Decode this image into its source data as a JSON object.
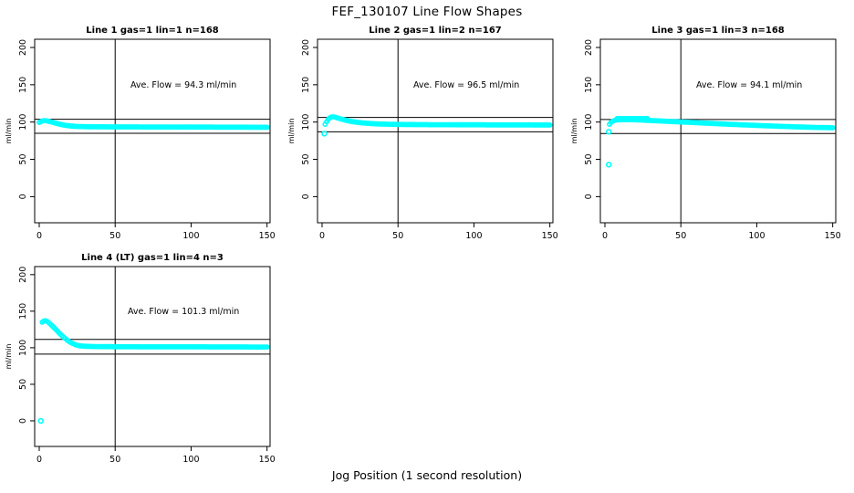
{
  "title": "FEF_130107  Line Flow Shapes",
  "xlabel": "Jog Position (1 second resolution)",
  "colors": {
    "points": "#00FFFF",
    "lines": "#000000",
    "background": "#FFFFFF"
  },
  "chart_data": [
    {
      "type": "scatter",
      "title": "Line 1 gas=1 lin=1 n=168",
      "n": 168,
      "avg_flow_ml_min": 94.3,
      "annotation": "Ave. Flow =  94.3  ml/min",
      "annotation_pos": [
        95,
        150
      ],
      "ylabel": "ml/min",
      "x_ticks": [
        0,
        50,
        100,
        150
      ],
      "y_ticks": [
        0,
        50,
        100,
        150,
        200
      ],
      "xlim": [
        -3,
        152
      ],
      "ylim": [
        -35,
        211
      ],
      "vline_x": 50,
      "ref_lines": [
        103.7,
        84.9
      ],
      "band_keypoints": [
        [
          0,
          99.5
        ],
        [
          1,
          100.5
        ],
        [
          2,
          101.5
        ],
        [
          3,
          102
        ],
        [
          4,
          102
        ],
        [
          5,
          101.6
        ],
        [
          6,
          101.1
        ],
        [
          7,
          100.6
        ],
        [
          8,
          100.1
        ],
        [
          9,
          99.5
        ],
        [
          10,
          99
        ],
        [
          12,
          97.9
        ],
        [
          14,
          96.9
        ],
        [
          16,
          96.1
        ],
        [
          18,
          95.4
        ],
        [
          20,
          94.9
        ],
        [
          22,
          94.5
        ],
        [
          25,
          94.1
        ],
        [
          28,
          93.9
        ],
        [
          32,
          93.7
        ],
        [
          40,
          93.6
        ],
        [
          55,
          93.5
        ],
        [
          75,
          93.4
        ],
        [
          95,
          93.3
        ],
        [
          115,
          93.2
        ],
        [
          135,
          93.1
        ],
        [
          150,
          93
        ]
      ],
      "upper_band_keypoints": [],
      "outlier_points": []
    },
    {
      "type": "scatter",
      "title": "Line 2 gas=1 lin=2 n=167",
      "n": 167,
      "avg_flow_ml_min": 96.5,
      "annotation": "Ave. Flow =  96.5  ml/min",
      "annotation_pos": [
        95,
        150
      ],
      "ylabel": "ml/min",
      "x_ticks": [
        0,
        50,
        100,
        150
      ],
      "y_ticks": [
        0,
        50,
        100,
        150,
        200
      ],
      "xlim": [
        -3,
        152
      ],
      "ylim": [
        -35,
        211
      ],
      "vline_x": 50,
      "ref_lines": [
        106.2,
        86.9
      ],
      "band_keypoints": [
        [
          2,
          97
        ],
        [
          3,
          100.5
        ],
        [
          4,
          103.5
        ],
        [
          5,
          105.5
        ],
        [
          6,
          106.6
        ],
        [
          7,
          107
        ],
        [
          8,
          106.8
        ],
        [
          9,
          106.3
        ],
        [
          10,
          105.6
        ],
        [
          11,
          105
        ],
        [
          12,
          104.4
        ],
        [
          14,
          103.3
        ],
        [
          16,
          102.3
        ],
        [
          18,
          101.4
        ],
        [
          20,
          100.6
        ],
        [
          22,
          100
        ],
        [
          25,
          99.2
        ],
        [
          28,
          98.6
        ],
        [
          32,
          98
        ],
        [
          36,
          97.6
        ],
        [
          40,
          97.3
        ],
        [
          48,
          96.9
        ],
        [
          56,
          96.7
        ],
        [
          70,
          96.5
        ],
        [
          85,
          96.4
        ],
        [
          100,
          96.3
        ],
        [
          120,
          96.2
        ],
        [
          150,
          96.1
        ]
      ],
      "upper_band_keypoints": [],
      "outlier_points": [
        [
          1.5,
          84.5
        ]
      ]
    },
    {
      "type": "scatter",
      "title": "Line 3 gas=1 lin=3 n=168",
      "n": 168,
      "avg_flow_ml_min": 94.1,
      "annotation": "Ave. Flow =  94.1  ml/min",
      "annotation_pos": [
        95,
        150
      ],
      "ylabel": "ml/min",
      "x_ticks": [
        0,
        50,
        100,
        150
      ],
      "y_ticks": [
        0,
        50,
        100,
        150,
        200
      ],
      "xlim": [
        -3,
        152
      ],
      "ylim": [
        -35,
        211
      ],
      "vline_x": 50,
      "ref_lines": [
        103.5,
        84.7
      ],
      "band_keypoints": [
        [
          3,
          97
        ],
        [
          4,
          99.5
        ],
        [
          5,
          101
        ],
        [
          6,
          102
        ],
        [
          7,
          102.6
        ],
        [
          8,
          102.9
        ],
        [
          10,
          103.1
        ],
        [
          13,
          103.2
        ],
        [
          16,
          103.2
        ],
        [
          19,
          103.1
        ],
        [
          22,
          102.9
        ],
        [
          25,
          102.6
        ],
        [
          28,
          102.3
        ],
        [
          32,
          101.9
        ],
        [
          36,
          101.5
        ],
        [
          40,
          101.1
        ],
        [
          45,
          100.6
        ],
        [
          50,
          100.1
        ],
        [
          55,
          99.7
        ],
        [
          60,
          99.2
        ],
        [
          65,
          98.7
        ],
        [
          70,
          98.2
        ],
        [
          75,
          97.7
        ],
        [
          80,
          97.2
        ],
        [
          85,
          96.8
        ],
        [
          90,
          96.3
        ],
        [
          95,
          95.9
        ],
        [
          100,
          95.5
        ],
        [
          105,
          95.1
        ],
        [
          110,
          94.7
        ],
        [
          115,
          94.3
        ],
        [
          120,
          94
        ],
        [
          125,
          93.6
        ],
        [
          130,
          93.3
        ],
        [
          135,
          93
        ],
        [
          140,
          92.8
        ],
        [
          145,
          92.6
        ],
        [
          150,
          92.4
        ]
      ],
      "upper_band_keypoints": [
        [
          8,
          104.6
        ],
        [
          28,
          104.6
        ]
      ],
      "outlier_points": [
        [
          2.5,
          43
        ],
        [
          2.5,
          87
        ]
      ]
    },
    {
      "type": "scatter",
      "title": "Line 4 (LT) gas=1 lin=4 n=3",
      "n": 3,
      "avg_flow_ml_min": 101.3,
      "annotation": "Ave. Flow =  101.3  ml/min",
      "annotation_pos": [
        95,
        150
      ],
      "ylabel": "ml/min",
      "x_ticks": [
        0,
        50,
        100,
        150
      ],
      "y_ticks": [
        0,
        50,
        100,
        150,
        200
      ],
      "xlim": [
        -3,
        152
      ],
      "ylim": [
        -35,
        211
      ],
      "vline_x": 50,
      "ref_lines": [
        111.4,
        91.2
      ],
      "band_keypoints": [
        [
          2,
          135
        ],
        [
          3,
          136.5
        ],
        [
          4,
          137
        ],
        [
          5,
          136.3
        ],
        [
          6,
          134.8
        ],
        [
          7,
          133
        ],
        [
          8,
          131
        ],
        [
          9,
          129
        ],
        [
          10,
          127
        ],
        [
          11,
          124.8
        ],
        [
          12,
          122.6
        ],
        [
          13,
          120.5
        ],
        [
          14,
          118.4
        ],
        [
          15,
          116.4
        ],
        [
          16,
          114.5
        ],
        [
          17,
          112.8
        ],
        [
          18,
          111.1
        ],
        [
          19,
          109.5
        ],
        [
          20,
          108.1
        ],
        [
          21,
          106.9
        ],
        [
          22,
          105.8
        ],
        [
          23,
          104.8
        ],
        [
          24,
          104
        ],
        [
          25,
          103.4
        ],
        [
          26,
          102.9
        ],
        [
          28,
          102.3
        ],
        [
          30,
          102
        ],
        [
          33,
          101.8
        ],
        [
          37,
          101.6
        ],
        [
          42,
          101.5
        ],
        [
          50,
          101.4
        ],
        [
          65,
          101.3
        ],
        [
          85,
          101.25
        ],
        [
          105,
          101.2
        ],
        [
          125,
          101.1
        ],
        [
          150,
          101
        ]
      ],
      "upper_band_keypoints": [],
      "outlier_points": [
        [
          1,
          0
        ]
      ]
    }
  ]
}
